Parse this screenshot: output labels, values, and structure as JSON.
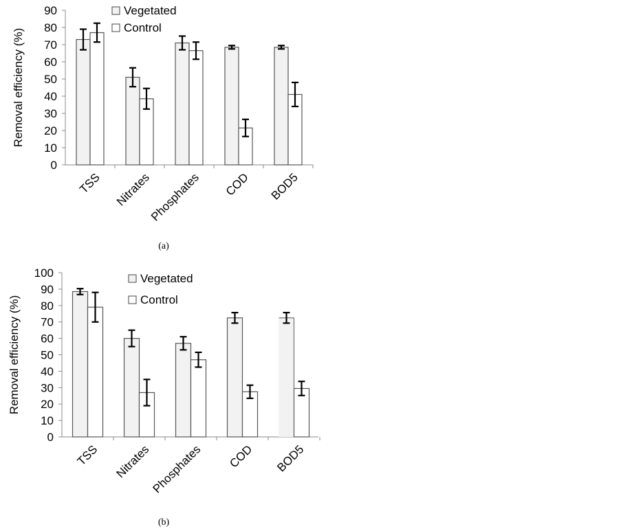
{
  "chart_data": [
    {
      "type": "bar",
      "caption": "(a)",
      "title": "",
      "xlabel": "",
      "ylabel": "Removal efficiency (%)",
      "ylim": [
        0,
        90
      ],
      "yticks": [
        "0",
        "10",
        "20",
        "30",
        "40",
        "50",
        "60",
        "70",
        "80",
        "90"
      ],
      "categories": [
        "TSS",
        "Nitrates",
        "Phosphates",
        "COD",
        "BOD5"
      ],
      "legend_position": "top-center",
      "series": [
        {
          "name": "Vegetated",
          "color": "#f2f2f2",
          "values": [
            73,
            51,
            71,
            68.5,
            68.5
          ],
          "errors": [
            6,
            5.5,
            4,
            1,
            1
          ]
        },
        {
          "name": "Control",
          "color": "#ffffff",
          "values": [
            77,
            38.5,
            66.5,
            21.5,
            41
          ],
          "errors": [
            5.5,
            6,
            5,
            5,
            7
          ]
        }
      ]
    },
    {
      "type": "bar",
      "caption": "(b)",
      "title": "",
      "xlabel": "",
      "ylabel": "Removal efficiency (%)",
      "ylim": [
        0,
        100
      ],
      "yticks": [
        "0",
        "10",
        "20",
        "30",
        "40",
        "50",
        "60",
        "70",
        "80",
        "90",
        "100"
      ],
      "categories": [
        "TSS",
        "Nitrates",
        "Phosphates",
        "COD",
        "BOD5"
      ],
      "legend_position": "top-center",
      "series": [
        {
          "name": "Vegetated",
          "color": "#f2f2f2",
          "values": [
            88.5,
            60,
            57,
            72.5,
            72.5
          ],
          "errors": [
            1.8,
            5,
            4,
            3.2,
            3.2
          ]
        },
        {
          "name": "Control",
          "color": "#ffffff",
          "values": [
            79,
            27,
            47,
            27.5,
            29.5
          ],
          "errors": [
            9,
            8,
            4.5,
            4,
            4.3
          ]
        }
      ]
    }
  ]
}
